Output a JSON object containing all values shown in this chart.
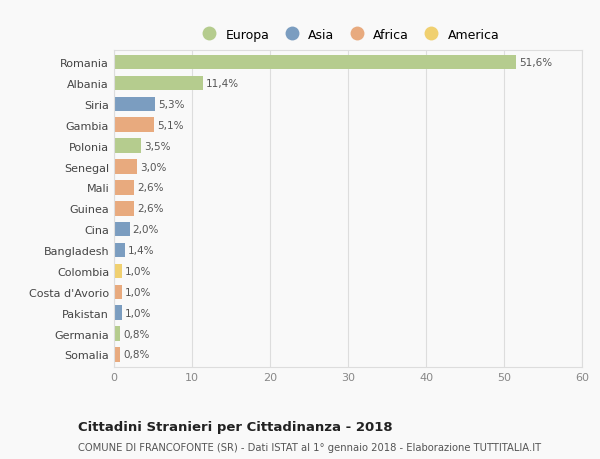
{
  "categories": [
    "Romania",
    "Albania",
    "Siria",
    "Gambia",
    "Polonia",
    "Senegal",
    "Mali",
    "Guinea",
    "Cina",
    "Bangladesh",
    "Colombia",
    "Costa d'Avorio",
    "Pakistan",
    "Germania",
    "Somalia"
  ],
  "values": [
    51.6,
    11.4,
    5.3,
    5.1,
    3.5,
    3.0,
    2.6,
    2.6,
    2.0,
    1.4,
    1.0,
    1.0,
    1.0,
    0.8,
    0.8
  ],
  "labels": [
    "51,6%",
    "11,4%",
    "5,3%",
    "5,1%",
    "3,5%",
    "3,0%",
    "2,6%",
    "2,6%",
    "2,0%",
    "1,4%",
    "1,0%",
    "1,0%",
    "1,0%",
    "0,8%",
    "0,8%"
  ],
  "continent": [
    "Europa",
    "Europa",
    "Asia",
    "Africa",
    "Europa",
    "Africa",
    "Africa",
    "Africa",
    "Asia",
    "Asia",
    "America",
    "Africa",
    "Asia",
    "Europa",
    "Africa"
  ],
  "colors": {
    "Europa": "#b5cc8e",
    "Asia": "#7b9dc0",
    "Africa": "#e8aa7e",
    "America": "#f0d070"
  },
  "legend_order": [
    "Europa",
    "Asia",
    "Africa",
    "America"
  ],
  "xlim": [
    0,
    60
  ],
  "xticks": [
    0,
    10,
    20,
    30,
    40,
    50,
    60
  ],
  "title": "Cittadini Stranieri per Cittadinanza - 2018",
  "subtitle": "COMUNE DI FRANCOFONTE (SR) - Dati ISTAT al 1° gennaio 2018 - Elaborazione TUTTITALIA.IT",
  "bg_color": "#f9f9f9",
  "grid_color": "#dddddd",
  "bar_height": 0.7
}
